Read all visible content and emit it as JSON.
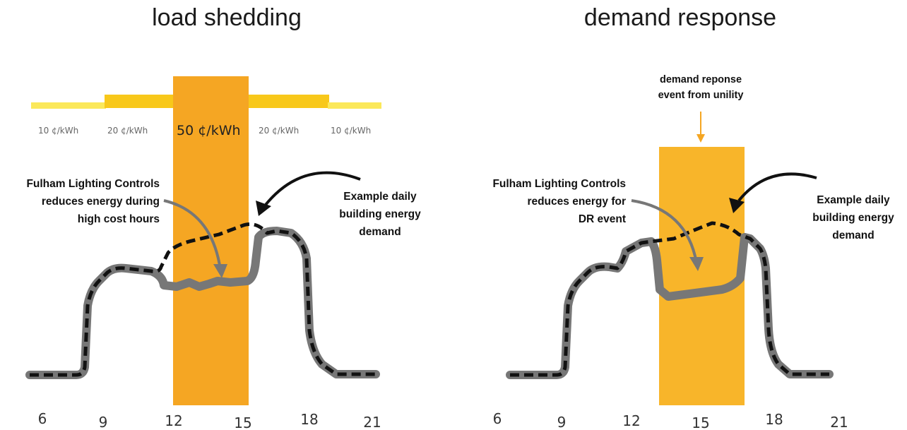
{
  "left": {
    "title": "load shedding",
    "rates": [
      "10 ¢/kWh",
      "20 ¢/kWh",
      "50 ¢/kWh",
      "20 ¢/kWh",
      "10 ¢/kWh"
    ],
    "annotation_controls": [
      "Fulham Lighting Controls",
      "reduces energy during",
      "high cost hours"
    ],
    "annotation_demand": [
      "Example daily",
      "building energy",
      "demand"
    ],
    "x_ticks": [
      "6",
      "9",
      "12",
      "15",
      "18",
      "21"
    ]
  },
  "right": {
    "title": "demand response",
    "event_label": [
      "demand reponse",
      "event from unility"
    ],
    "annotation_controls": [
      "Fulham Lighting Controls",
      "reduces energy for",
      "DR event"
    ],
    "annotation_demand": [
      "Example daily",
      "building energy",
      "demand"
    ],
    "x_ticks": [
      "6",
      "9",
      "12",
      "15",
      "18",
      "21"
    ]
  },
  "colors": {
    "rate_high": "#f5a623",
    "rate_mid": "#f8c81a",
    "rate_low": "#fbe85a",
    "event_box": "#f8b52a",
    "reduced_curve": "#777777",
    "demand_curve": "#1a1a1a"
  }
}
